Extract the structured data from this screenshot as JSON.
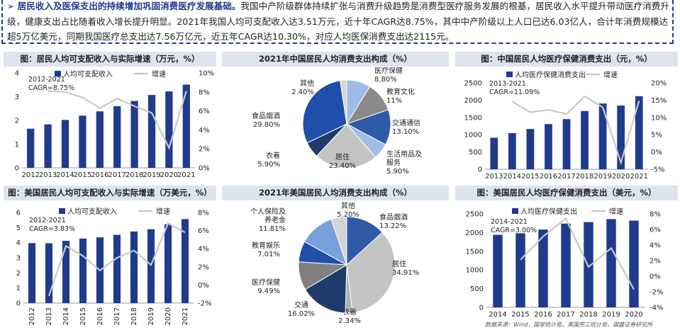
{
  "banner": {
    "arrow": "➢",
    "headline": "居民收入及医保支出的持续增加巩固消费医疗发展基础。",
    "body": "我国中产阶级群体持续扩张与消费升级趋势是消费型医疗服务发展的根基，居民收入水平提升带动医疗消费升级，健康支出占比随着收入增长提升明显。2021年我国人均可支配收入达3.51万元，近十年CAGR达8.75%，其中中产阶级以上人口已达6.03亿人，合计年消费规模达超5万亿美元，同期我国医疗总支出达7.56万亿元，近五年CAGR达10.30%，对应人均医保消费支出达2115元。"
  },
  "source": "数据来源：Wind，国家统计局，美国劳工统计局，国盛证券研究所",
  "colors": {
    "bar": "#1f3b8c",
    "line": "#c8c8c8",
    "title_bg": "#dde3ef",
    "border": "#1f3b8c"
  },
  "chart_data": [
    {
      "id": "cn_income",
      "type": "bar",
      "title": "图：居民人均可支配收入与实际增速（万元，%）",
      "categories": [
        "2012",
        "2013",
        "2014",
        "2015",
        "2016",
        "2017",
        "2018",
        "2019",
        "2020",
        "2021"
      ],
      "series": [
        {
          "name": "人均可支配收入",
          "kind": "bar",
          "axis": "left",
          "values": [
            1.65,
            1.83,
            2.02,
            2.2,
            2.38,
            2.6,
            2.82,
            3.07,
            3.22,
            3.51
          ]
        },
        {
          "name": "增速",
          "kind": "line",
          "axis": "right",
          "values": [
            null,
            8.1,
            8.0,
            7.4,
            6.3,
            7.3,
            6.5,
            5.8,
            2.1,
            8.1
          ]
        }
      ],
      "ylim": [
        0,
        4
      ],
      "yticks": [
        0,
        1,
        2,
        3,
        4
      ],
      "y2lim": [
        0,
        10
      ],
      "y2ticks": [
        "0%",
        "2%",
        "4%",
        "6%",
        "8%",
        "10%"
      ],
      "annotation": [
        "2012-2021",
        "CAGR=8.75%"
      ]
    },
    {
      "id": "cn_pie",
      "type": "pie",
      "title": "2021年中国居民人均消费支出构成（%）",
      "slices": [
        {
          "label": "医疗保健",
          "value": 8.8,
          "text": "8.80%",
          "color": "#9dbde6"
        },
        {
          "label": "教育文化",
          "value": 11,
          "text": "11%",
          "color": "#8a8a8a"
        },
        {
          "label": "交通通信",
          "value": 13.1,
          "text": "13.10%",
          "color": "#2e5aa8"
        },
        {
          "label": "生活用品及服务",
          "value": 5.9,
          "text": "5.90%",
          "color": "#9dbde6"
        },
        {
          "label": "居住",
          "value": 23.4,
          "text": "23.40%",
          "color": "#c4c4c4"
        },
        {
          "label": "衣着",
          "value": 5.9,
          "text": "5.90%",
          "color": "#1f3b6c"
        },
        {
          "label": "食品烟酒",
          "value": 29.8,
          "text": "29.80%",
          "color": "#1f4fa8"
        },
        {
          "label": "其他",
          "value": 2.4,
          "text": "2.40%",
          "color": "#d4d4d4"
        }
      ]
    },
    {
      "id": "cn_health",
      "type": "bar",
      "title": "图：中国居民人均医疗保健消费支出（元，%）",
      "categories": [
        "2013",
        "2014",
        "2015",
        "2016",
        "2017",
        "2018",
        "2019",
        "2020",
        "2021"
      ],
      "series": [
        {
          "name": "人均医疗保健消费支出",
          "kind": "bar",
          "axis": "left",
          "values": [
            912,
            1045,
            1165,
            1307,
            1451,
            1685,
            1902,
            1843,
            2115
          ]
        },
        {
          "name": "增速",
          "kind": "line",
          "axis": "right",
          "values": [
            null,
            14.6,
            11.5,
            12.2,
            11.0,
            16.1,
            12.9,
            -3.1,
            14.8
          ]
        }
      ],
      "ylim": [
        0,
        2500
      ],
      "yticks": [
        0,
        500,
        1000,
        1500,
        2000,
        2500
      ],
      "y2lim": [
        -5,
        20
      ],
      "y2ticks": [
        "-5%",
        "0%",
        "5%",
        "10%",
        "15%",
        "20%"
      ],
      "annotation": [
        "2013-2021",
        "CAGR=11.09%"
      ]
    },
    {
      "id": "us_income",
      "type": "bar",
      "title": "图：美国居民人均可支配收入与实际增速（万美元，%）",
      "categories": [
        "2012",
        "2013",
        "2014",
        "2015",
        "2016",
        "2017",
        "2018",
        "2019",
        "2020",
        "2021"
      ],
      "series": [
        {
          "name": "人均可支配收入",
          "kind": "bar",
          "axis": "left",
          "values": [
            3.97,
            3.96,
            4.12,
            4.27,
            4.35,
            4.52,
            4.74,
            4.89,
            5.21,
            5.56
          ]
        },
        {
          "name": "增速",
          "kind": "line",
          "axis": "right",
          "values": [
            null,
            -1.2,
            4.3,
            3.2,
            1.6,
            3.0,
            3.8,
            2.2,
            6.8,
            5.8
          ]
        }
      ],
      "ylim": [
        0,
        6
      ],
      "yticks": [
        0,
        1,
        2,
        3,
        4,
        5,
        6
      ],
      "y2lim": [
        -2,
        8
      ],
      "y2ticks": [
        "-2%",
        "0%",
        "2%",
        "4%",
        "6%",
        "8%"
      ],
      "annotation": [
        "2012-2021",
        "CAGR=3.83%"
      ]
    },
    {
      "id": "us_pie",
      "type": "pie",
      "title": "2021年美国居民人均消费支出构成（%）",
      "slices": [
        {
          "label": "食品烟酒",
          "value": 13.22,
          "text": "13.22%",
          "color": "#2e5aa8"
        },
        {
          "label": "居住",
          "value": 34.91,
          "text": "34.91%",
          "color": "#c4c4c4"
        },
        {
          "label": "衣着",
          "value": 2.34,
          "text": "2.34%",
          "color": "#b0b0b0"
        },
        {
          "label": "交通",
          "value": 16.02,
          "text": "16.02%",
          "color": "#1f3b6c"
        },
        {
          "label": "医疗保健",
          "value": 9.49,
          "text": "9.49%",
          "color": "#808080"
        },
        {
          "label": "教育娱乐",
          "value": 7.01,
          "text": "7.01%",
          "color": "#1f4fa8"
        },
        {
          "label": "个人保险及养老金",
          "value": 11.81,
          "text": "11.81%",
          "color": "#7aa0dc"
        },
        {
          "label": "其他",
          "value": 5.2,
          "text": "5.20%",
          "color": "#d4d4d4"
        }
      ]
    },
    {
      "id": "us_health",
      "type": "bar",
      "title": "图：美国居民人均医疗保健消费支出（美元，%）",
      "categories": [
        "2014",
        "2015",
        "2016",
        "2017",
        "2018",
        "2019",
        "2020"
      ],
      "series": [
        {
          "name": "人均医疗保健支出",
          "kind": "bar",
          "axis": "left",
          "values": [
            1940,
            1980,
            2080,
            2240,
            2280,
            2360,
            2320
          ]
        },
        {
          "name": "增速",
          "kind": "line",
          "axis": "right",
          "values": [
            null,
            2.1,
            5.1,
            7.4,
            1.2,
            3.6,
            -1.7
          ]
        }
      ],
      "ylim": [
        0,
        2500
      ],
      "yticks": [
        0,
        500,
        1000,
        1500,
        2000,
        2500
      ],
      "y2lim": [
        -4,
        8
      ],
      "y2ticks": [
        "-4%",
        "-2%",
        "0%",
        "2%",
        "4%",
        "6%",
        "8%"
      ],
      "annotation": [
        "2014-2021",
        "CAGR=3.00%"
      ]
    }
  ]
}
